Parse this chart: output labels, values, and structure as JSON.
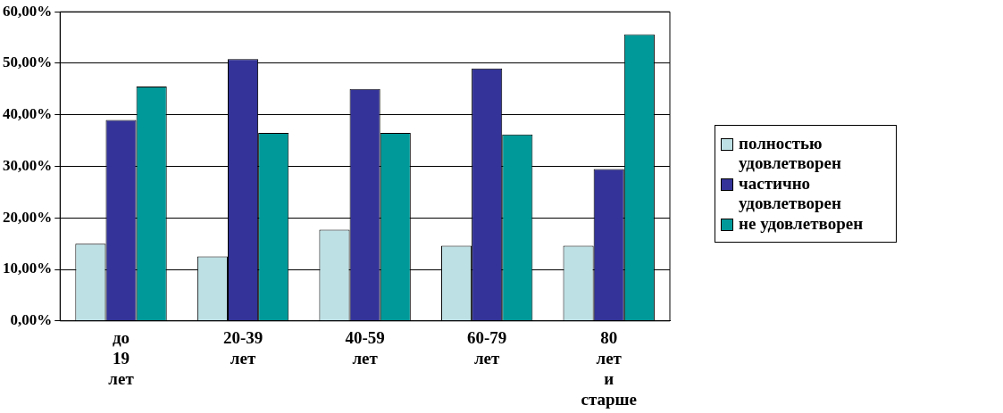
{
  "chart_data": {
    "type": "bar",
    "categories": [
      "до 19 лет",
      "20-39 лет",
      "40-59 лет",
      "60-79 лет",
      "80 лет и старше"
    ],
    "series": [
      {
        "name": "полностью удовлетворен",
        "color": "#bde0e4",
        "values": [
          15,
          12.5,
          17.7,
          14.6,
          14.6
        ]
      },
      {
        "name": "частично удовлетворен",
        "color": "#333399",
        "values": [
          39,
          50.8,
          45,
          49,
          29.5
        ]
      },
      {
        "name": "не удовлетворен",
        "color": "#009999",
        "values": [
          45.5,
          36.5,
          36.5,
          36.2,
          55.6
        ]
      }
    ],
    "ylim": [
      0,
      60
    ],
    "yticks": [
      {
        "value": 0,
        "label": "0,00%"
      },
      {
        "value": 10,
        "label": "10,00%"
      },
      {
        "value": 20,
        "label": "20,00%"
      },
      {
        "value": 30,
        "label": "30,00%"
      },
      {
        "value": 40,
        "label": "40,00%"
      },
      {
        "value": 50,
        "label": "50,00%"
      },
      {
        "value": 60,
        "label": "60,00%"
      }
    ],
    "grid": "y",
    "legend": "right"
  }
}
